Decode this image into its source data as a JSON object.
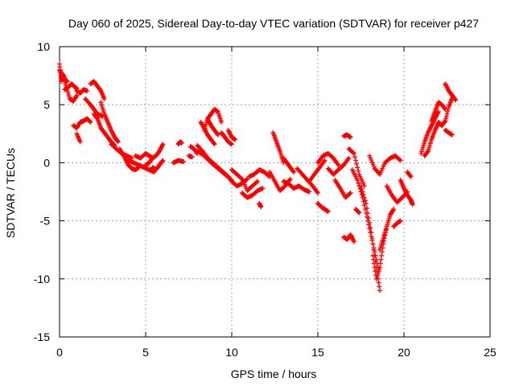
{
  "chart_data": {
    "type": "scatter",
    "title": "Day 060 of 2025, Sidereal Day-to-day VTEC variation (SDTVAR) for receiver p427",
    "xlabel": "GPS time / hours",
    "ylabel": "SDTVAR / TECUs",
    "xlim": [
      0,
      25
    ],
    "ylim": [
      -15,
      10
    ],
    "xticks": [
      0,
      5,
      10,
      15,
      20,
      25
    ],
    "yticks": [
      -15,
      -10,
      -5,
      0,
      5,
      10
    ],
    "xtick_labels": [
      "0",
      "5",
      "10",
      "15",
      "20",
      "25"
    ],
    "ytick_labels": [
      "-15",
      "-10",
      "-5",
      "0",
      "5",
      "10"
    ],
    "grid": true,
    "marker": "+",
    "color": "#ff0000",
    "series": [
      {
        "segments": [
          {
            "x": [
              0.0,
              0.2,
              0.4,
              0.6,
              0.8,
              1.0
            ],
            "y": [
              8.0,
              7.5,
              6.5,
              5.5,
              5.3,
              5.8
            ]
          },
          {
            "x": [
              0.0,
              0.1,
              0.2,
              0.3,
              0.45
            ],
            "y": [
              8.5,
              7.0,
              7.6,
              7.2,
              7.0
            ]
          },
          {
            "x": [
              0.3,
              0.5,
              0.7,
              0.9,
              1.0
            ],
            "y": [
              6.3,
              6.5,
              6.8,
              6.5,
              6.4
            ]
          },
          {
            "x": [
              1.0,
              1.2,
              1.4,
              1.6
            ],
            "y": [
              6.2,
              6.0,
              6.3,
              6.2
            ]
          },
          {
            "x": [
              0.8,
              1.0,
              1.2,
              1.4,
              1.6,
              1.8
            ],
            "y": [
              3.2,
              3.0,
              3.5,
              3.6,
              3.8,
              3.5
            ]
          },
          {
            "x": [
              1.0,
              1.2
            ],
            "y": [
              2.5,
              1.8
            ]
          },
          {
            "x": [
              1.5,
              1.8,
              2.0,
              2.2,
              2.5
            ],
            "y": [
              5.5,
              5.0,
              4.6,
              4.2,
              4.0
            ]
          },
          {
            "x": [
              1.8,
              2.0,
              2.2,
              2.4,
              2.6
            ],
            "y": [
              6.8,
              7.0,
              6.6,
              6.2,
              5.5
            ]
          },
          {
            "x": [
              2.4,
              2.6,
              2.8,
              3.0,
              3.2,
              3.4
            ],
            "y": [
              5.2,
              4.2,
              3.5,
              2.8,
              2.2,
              1.8
            ]
          },
          {
            "x": [
              2.0,
              2.2,
              2.4,
              2.6,
              2.8,
              3.0,
              3.2
            ],
            "y": [
              4.2,
              3.8,
              3.0,
              2.6,
              2.2,
              1.8,
              1.5
            ]
          },
          {
            "x": [
              3.0,
              3.3,
              3.6,
              3.9,
              4.2
            ],
            "y": [
              1.6,
              1.2,
              0.8,
              0.6,
              0.4
            ]
          },
          {
            "x": [
              3.5,
              3.8,
              4.0,
              4.2,
              4.4,
              4.6
            ],
            "y": [
              1.2,
              0.4,
              -0.2,
              -0.5,
              -0.6,
              -0.4
            ]
          },
          {
            "x": [
              4.0,
              4.3,
              4.6,
              4.9,
              5.2,
              5.5
            ],
            "y": [
              0.2,
              0.0,
              -0.2,
              -0.4,
              -0.6,
              -0.8
            ]
          },
          {
            "x": [
              4.4,
              4.7,
              5.0,
              5.2,
              5.4
            ],
            "y": [
              0.6,
              0.4,
              0.8,
              0.6,
              0.4
            ]
          },
          {
            "x": [
              5.0,
              5.2,
              5.4,
              5.6,
              5.8,
              6.0
            ],
            "y": [
              -0.2,
              0.0,
              0.4,
              0.6,
              1.0,
              1.6
            ]
          },
          {
            "x": [
              5.4,
              5.6,
              5.8,
              6.0
            ],
            "y": [
              -0.4,
              -0.6,
              -0.2,
              0.2
            ]
          },
          {
            "x": [
              6.6,
              6.9,
              7.2
            ],
            "y": [
              0.0,
              0.2,
              0.1
            ]
          },
          {
            "x": [
              6.9,
              7.0,
              7.1
            ],
            "y": [
              1.6,
              1.8,
              1.7
            ]
          },
          {
            "x": [
              7.6,
              7.8,
              8.0
            ],
            "y": [
              1.4,
              1.2,
              0.8
            ]
          },
          {
            "x": [
              7.5,
              7.7
            ],
            "y": [
              0.6,
              0.5
            ]
          },
          {
            "x": [
              8.0,
              8.3,
              8.6,
              8.9,
              9.2,
              9.5
            ],
            "y": [
              1.5,
              1.0,
              0.4,
              0.0,
              -0.4,
              -0.8
            ]
          },
          {
            "x": [
              8.0,
              8.4,
              8.8,
              9.2,
              9.6,
              10.0
            ],
            "y": [
              1.0,
              0.6,
              0.0,
              -0.5,
              -1.0,
              -1.5
            ]
          },
          {
            "x": [
              8.2,
              8.4,
              8.6,
              8.8,
              9.0
            ],
            "y": [
              3.5,
              3.0,
              2.4,
              2.0,
              1.6
            ]
          },
          {
            "x": [
              8.4,
              8.6,
              8.8,
              9.0,
              9.2,
              9.4
            ],
            "y": [
              2.8,
              3.8,
              4.2,
              4.6,
              4.4,
              3.5
            ]
          },
          {
            "x": [
              8.6,
              8.8,
              9.0,
              9.2
            ],
            "y": [
              3.8,
              3.2,
              2.8,
              2.4
            ]
          },
          {
            "x": [
              9.4,
              9.6,
              9.8,
              10.0
            ],
            "y": [
              2.6,
              2.2,
              1.8,
              1.6
            ]
          },
          {
            "x": [
              9.8,
              10.0,
              10.2
            ],
            "y": [
              2.8,
              2.2,
              2.0
            ]
          },
          {
            "x": [
              9.5,
              9.8,
              10.0,
              10.3,
              10.6,
              10.9
            ],
            "y": [
              -0.8,
              -1.2,
              -1.6,
              -2.0,
              -1.8,
              -1.4
            ]
          },
          {
            "x": [
              10.0,
              10.3,
              10.6,
              10.9,
              11.2,
              11.5
            ],
            "y": [
              -0.6,
              -1.0,
              -1.4,
              -2.4,
              -2.0,
              -1.6
            ]
          },
          {
            "x": [
              10.6,
              10.9,
              11.2,
              11.5,
              11.8
            ],
            "y": [
              -2.6,
              -3.0,
              -2.8,
              -2.4,
              -2.2
            ]
          },
          {
            "x": [
              11.0,
              11.3,
              11.6,
              11.9,
              12.2
            ],
            "y": [
              -1.2,
              -1.0,
              -0.6,
              -0.8,
              -1.2
            ]
          },
          {
            "x": [
              11.6,
              11.7
            ],
            "y": [
              -3.5,
              -3.8
            ]
          },
          {
            "x": [
              12.2,
              12.5,
              12.8,
              13.1,
              13.4
            ],
            "y": [
              -0.8,
              -1.6,
              -2.4,
              -2.0,
              -1.4
            ]
          },
          {
            "x": [
              12.4,
              12.6,
              12.8,
              13.0
            ],
            "y": [
              2.6,
              1.8,
              1.0,
              0.0
            ]
          },
          {
            "x": [
              13.0,
              13.2,
              13.4,
              13.6
            ],
            "y": [
              0.4,
              0.0,
              -0.4,
              -0.8
            ]
          },
          {
            "x": [
              13.0,
              13.3,
              13.6,
              13.9,
              14.2,
              14.5
            ],
            "y": [
              -1.6,
              -1.8,
              -2.2,
              -2.0,
              -2.3,
              -2.5
            ]
          },
          {
            "x": [
              13.8,
              14.1,
              14.4,
              14.7,
              15.0
            ],
            "y": [
              -0.5,
              -1.0,
              -1.5,
              -2.0,
              -2.6
            ]
          },
          {
            "x": [
              14.5,
              14.8,
              15.1,
              15.4
            ],
            "y": [
              -1.6,
              -1.0,
              -0.4,
              0.2
            ]
          },
          {
            "x": [
              15.0,
              15.3,
              15.6,
              15.9,
              16.2
            ],
            "y": [
              0.0,
              0.6,
              0.8,
              0.4,
              -0.2
            ]
          },
          {
            "x": [
              15.0,
              15.2,
              15.4,
              15.6
            ],
            "y": [
              -3.5,
              -3.8,
              -4.0,
              -4.2
            ]
          },
          {
            "x": [
              15.6,
              15.9,
              16.2,
              16.5,
              16.8
            ],
            "y": [
              -0.5,
              -1.0,
              -0.6,
              -0.2,
              0.4
            ]
          },
          {
            "x": [
              16.5,
              16.7,
              16.9
            ],
            "y": [
              2.3,
              2.4,
              2.2
            ]
          },
          {
            "x": [
              16.0,
              16.3,
              16.6,
              16.9
            ],
            "y": [
              -1.5,
              -2.2,
              -3.0,
              -2.6
            ]
          },
          {
            "x": [
              16.8,
              17.1,
              17.4,
              17.7
            ],
            "y": [
              1.2,
              0.8,
              -1.0,
              -2.0
            ]
          },
          {
            "x": [
              16.5,
              16.7,
              16.9,
              17.1
            ],
            "y": [
              -6.4,
              -6.6,
              -6.2,
              -6.8
            ]
          },
          {
            "x": [
              17.0,
              17.3,
              17.6,
              17.9,
              18.2,
              18.5
            ],
            "y": [
              -0.6,
              -1.5,
              -3.0,
              -5.0,
              -7.0,
              -9.0
            ]
          },
          {
            "x": [
              17.5,
              17.8,
              18.1,
              18.4,
              18.6
            ],
            "y": [
              -2.0,
              -3.5,
              -6.0,
              -9.0,
              -11.0
            ]
          },
          {
            "x": [
              17.2,
              17.4
            ],
            "y": [
              -4.0,
              -4.3
            ]
          },
          {
            "x": [
              18.2,
              18.4,
              18.6,
              18.8,
              19.0
            ],
            "y": [
              -8.0,
              -10.0,
              -9.0,
              -7.0,
              -5.5
            ]
          },
          {
            "x": [
              18.6,
              18.8,
              19.0,
              19.2,
              19.4
            ],
            "y": [
              -7.5,
              -6.5,
              -5.5,
              -4.5,
              -4.0
            ]
          },
          {
            "x": [
              18.0,
              18.3,
              18.6,
              18.9,
              19.2,
              19.5,
              19.8
            ],
            "y": [
              0.6,
              -0.5,
              -1.0,
              0.0,
              0.4,
              0.6,
              0.2
            ]
          },
          {
            "x": [
              19.0,
              19.3,
              19.6,
              19.9,
              20.2
            ],
            "y": [
              -2.0,
              -2.8,
              -3.4,
              -3.0,
              -2.5
            ]
          },
          {
            "x": [
              19.4,
              19.6,
              19.8
            ],
            "y": [
              -5.5,
              -5.2,
              -5.0
            ]
          },
          {
            "x": [
              19.8,
              20.0,
              20.2,
              20.4,
              20.5
            ],
            "y": [
              -1.5,
              -2.2,
              -2.8,
              -3.2,
              -3.6
            ]
          },
          {
            "x": [
              20.2,
              20.4
            ],
            "y": [
              -0.8,
              -1.2
            ]
          },
          {
            "x": [
              21.0,
              21.2,
              21.4,
              21.6,
              21.8,
              22.0
            ],
            "y": [
              0.8,
              1.8,
              2.6,
              3.2,
              3.8,
              4.4
            ]
          },
          {
            "x": [
              21.2,
              21.4,
              21.6,
              21.8,
              22.0
            ],
            "y": [
              0.6,
              1.0,
              2.0,
              2.8,
              3.4
            ]
          },
          {
            "x": [
              21.6,
              21.8,
              22.0,
              22.2,
              22.4
            ],
            "y": [
              3.6,
              4.4,
              5.2,
              5.0,
              4.6
            ]
          },
          {
            "x": [
              22.0,
              22.2,
              22.4,
              22.6,
              22.8
            ],
            "y": [
              3.5,
              3.2,
              3.6,
              4.8,
              5.6
            ]
          },
          {
            "x": [
              22.4,
              22.6,
              22.8,
              23.0
            ],
            "y": [
              6.8,
              6.2,
              5.8,
              5.4
            ]
          },
          {
            "x": [
              22.4,
              22.6,
              22.8
            ],
            "y": [
              2.8,
              2.6,
              2.4
            ]
          }
        ]
      }
    ]
  }
}
